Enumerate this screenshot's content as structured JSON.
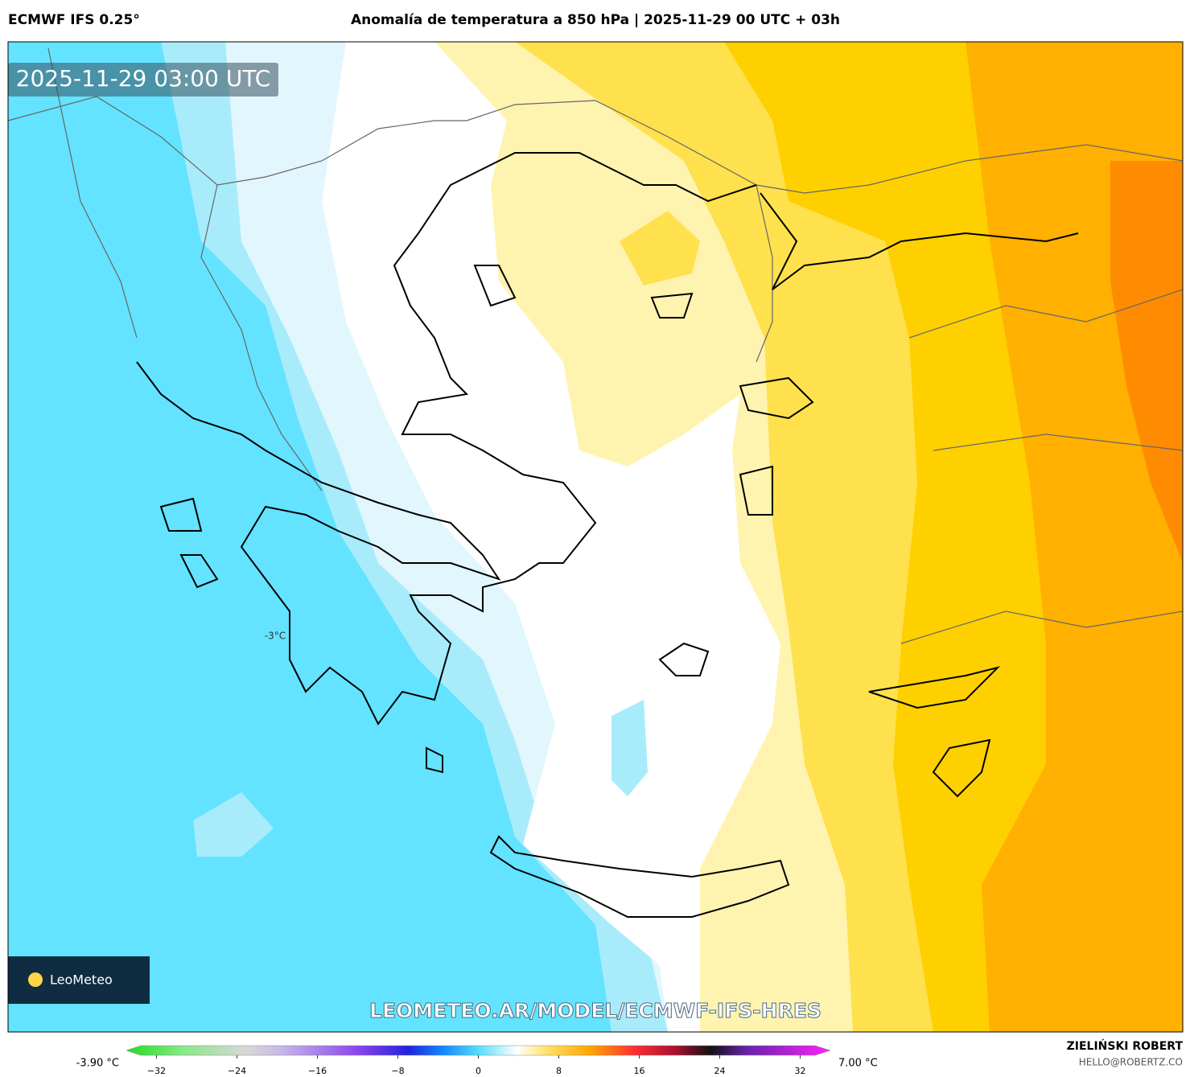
{
  "header": {
    "model": "ECMWF IFS 0.25°",
    "title": "Anomalía de temperatura a 850 hPa | 2025-11-29 00 UTC + 03h"
  },
  "map": {
    "timestamp": "2025-11-29 03:00 UTC",
    "contour_label": "-3°C",
    "logo": "LeoMeteo",
    "watermark": "LEOMETEO.AR/MODEL/ECMWF-IFS-HRES"
  },
  "colorbar": {
    "min_label": "-3.90 °C",
    "max_label": "7.00 °C",
    "lim": [
      -35,
      35
    ],
    "ticks": [
      {
        "value": -32,
        "label": "−32"
      },
      {
        "value": -24,
        "label": "−24"
      },
      {
        "value": -16,
        "label": "−16"
      },
      {
        "value": -8,
        "label": "−8"
      },
      0,
      8,
      16,
      24,
      32
    ]
  },
  "footer": {
    "author": "ZIELIŃSKI ROBERT",
    "email": "HELLO@ROBERTZ.CO"
  }
}
